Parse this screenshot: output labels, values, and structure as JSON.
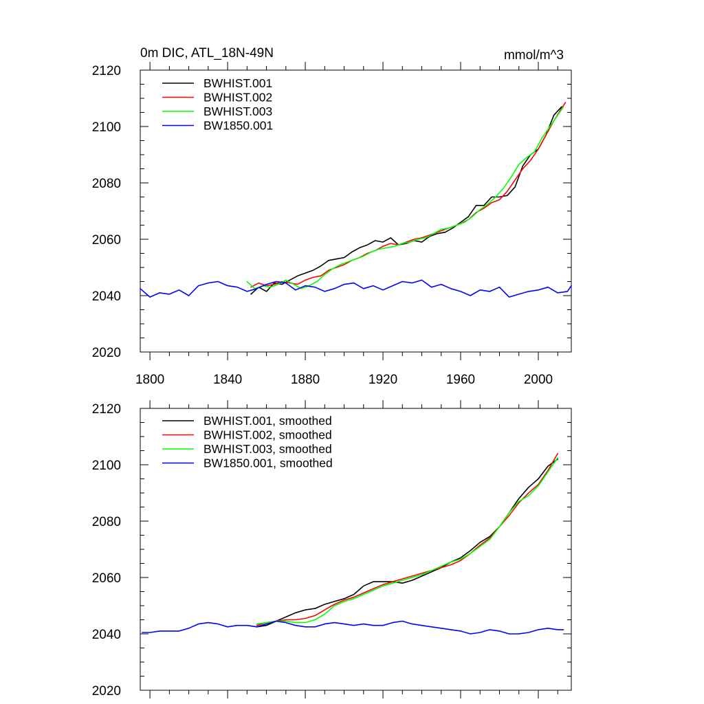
{
  "chart_data": [
    {
      "type": "line",
      "title_left": "0m DIC, ATL_18N-49N",
      "title_right": "mmol/m^3",
      "xlim": [
        1795,
        2017
      ],
      "ylim": [
        2020,
        2120
      ],
      "xticks": [
        1800,
        1840,
        1880,
        1920,
        1960,
        2000
      ],
      "xtick_labels": [
        "1800",
        "1840",
        "1880",
        "1920",
        "1960",
        "2000"
      ],
      "yticks": [
        2020,
        2040,
        2060,
        2080,
        2100,
        2120
      ],
      "ytick_labels": [
        "2020",
        "2040",
        "2060",
        "2080",
        "2100",
        "2120"
      ],
      "legend_position": "top-left",
      "series": [
        {
          "name": "BWHIST.001",
          "color": "#000000",
          "x": [
            1852,
            1856,
            1860,
            1864,
            1868,
            1872,
            1876,
            1880,
            1884,
            1888,
            1892,
            1896,
            1900,
            1904,
            1908,
            1912,
            1916,
            1920,
            1924,
            1928,
            1932,
            1936,
            1940,
            1944,
            1948,
            1952,
            1956,
            1960,
            1964,
            1968,
            1972,
            1976,
            1980,
            1984,
            1988,
            1992,
            1996,
            2000,
            2004,
            2008,
            2012
          ],
          "y": [
            2040.5,
            2043,
            2041.5,
            2044.5,
            2044,
            2045.5,
            2047,
            2048,
            2049,
            2050.5,
            2052.5,
            2053,
            2053.5,
            2055.5,
            2057,
            2058,
            2059.5,
            2059,
            2060.5,
            2058,
            2058.5,
            2059.5,
            2059,
            2061,
            2062,
            2062.5,
            2064,
            2066,
            2068,
            2072,
            2072,
            2075,
            2075,
            2075.5,
            2078.5,
            2086,
            2090,
            2092,
            2097,
            2104,
            2107
          ]
        },
        {
          "name": "BWHIST.002",
          "color": "#ff0000",
          "x": [
            1852,
            1856,
            1860,
            1864,
            1868,
            1872,
            1876,
            1880,
            1884,
            1888,
            1892,
            1896,
            1900,
            1904,
            1908,
            1912,
            1916,
            1920,
            1924,
            1928,
            1932,
            1936,
            1940,
            1944,
            1948,
            1952,
            1956,
            1960,
            1964,
            1968,
            1972,
            1976,
            1980,
            1984,
            1988,
            1992,
            1996,
            2000,
            2004,
            2008,
            2012,
            2014
          ],
          "y": [
            2043,
            2044.5,
            2043.5,
            2044,
            2045,
            2044.5,
            2044,
            2045.5,
            2046.5,
            2047,
            2049,
            2050,
            2051,
            2052.5,
            2053.5,
            2055,
            2056,
            2057.5,
            2058.5,
            2058,
            2059,
            2060,
            2060.5,
            2061.5,
            2062.5,
            2063.5,
            2064.5,
            2065.5,
            2067,
            2069.5,
            2071,
            2073,
            2074,
            2077,
            2081,
            2085,
            2088,
            2092,
            2097,
            2102,
            2106.5,
            2108.5
          ]
        },
        {
          "name": "BWHIST.003",
          "color": "#00ff00",
          "x": [
            1850,
            1854,
            1858,
            1862,
            1866,
            1870,
            1874,
            1878,
            1882,
            1886,
            1890,
            1894,
            1898,
            1902,
            1906,
            1910,
            1914,
            1918,
            1922,
            1926,
            1930,
            1934,
            1938,
            1942,
            1946,
            1950,
            1954,
            1958,
            1962,
            1966,
            1970,
            1974,
            1978,
            1982,
            1986,
            1990,
            1994,
            1998,
            2002,
            2006,
            2010,
            2013
          ],
          "y": [
            2045,
            2042.5,
            2043.5,
            2043,
            2044,
            2045.5,
            2044,
            2042.5,
            2043.5,
            2045,
            2047.5,
            2049.5,
            2051,
            2052,
            2053,
            2054,
            2055.5,
            2056.5,
            2057,
            2057.5,
            2058.5,
            2059,
            2060,
            2060.5,
            2062,
            2063.5,
            2064,
            2065,
            2066,
            2068,
            2070.5,
            2072.5,
            2075,
            2078,
            2082,
            2086.5,
            2089,
            2091,
            2096,
            2100,
            2104,
            2107
          ]
        },
        {
          "name": "BW1850.001",
          "color": "#0000ff",
          "x": [
            1795,
            1800,
            1805,
            1810,
            1815,
            1820,
            1825,
            1830,
            1835,
            1840,
            1845,
            1850,
            1855,
            1860,
            1865,
            1870,
            1875,
            1880,
            1885,
            1890,
            1895,
            1900,
            1905,
            1910,
            1915,
            1920,
            1925,
            1930,
            1935,
            1940,
            1945,
            1950,
            1955,
            1960,
            1965,
            1970,
            1975,
            1980,
            1985,
            1990,
            1995,
            2000,
            2005,
            2010,
            2015,
            2017
          ],
          "y": [
            2042.5,
            2039.5,
            2041,
            2040.5,
            2042,
            2040,
            2043.5,
            2044.5,
            2045,
            2043.5,
            2043,
            2041.5,
            2042.5,
            2044,
            2045,
            2044.5,
            2042,
            2043.5,
            2043,
            2041.5,
            2042.5,
            2044,
            2044.5,
            2042.5,
            2043.5,
            2042,
            2043.5,
            2045,
            2044.5,
            2045.5,
            2043,
            2044,
            2042.5,
            2041.5,
            2040,
            2042,
            2041.5,
            2043,
            2039.5,
            2040.5,
            2041.5,
            2042,
            2043,
            2041,
            2041.5,
            2043.5
          ]
        }
      ]
    },
    {
      "type": "line",
      "xlim": [
        1795,
        2017
      ],
      "ylim": [
        2020,
        2120
      ],
      "xticks": [
        1800,
        1840,
        1880,
        1920,
        1960,
        2000
      ],
      "yticks": [
        2020,
        2040,
        2060,
        2080,
        2100,
        2120
      ],
      "ytick_labels": [
        "2020",
        "2040",
        "2060",
        "2080",
        "2100",
        "2120"
      ],
      "legend_position": "top-left",
      "series": [
        {
          "name": "BWHIST.001, smoothed",
          "color": "#000000",
          "x": [
            1855,
            1860,
            1865,
            1870,
            1875,
            1880,
            1885,
            1890,
            1895,
            1900,
            1905,
            1910,
            1915,
            1920,
            1925,
            1930,
            1935,
            1940,
            1945,
            1950,
            1955,
            1960,
            1965,
            1970,
            1975,
            1980,
            1985,
            1990,
            1995,
            2000,
            2005,
            2010
          ],
          "y": [
            2042.5,
            2043,
            2044.5,
            2046,
            2047.5,
            2048.5,
            2049,
            2050.5,
            2051.5,
            2052.5,
            2054,
            2057,
            2058.5,
            2058.5,
            2058.5,
            2058,
            2059,
            2060.5,
            2062,
            2063.5,
            2065.5,
            2067,
            2069.5,
            2072.5,
            2074.5,
            2078,
            2083,
            2088,
            2092,
            2095,
            2099.5,
            2102
          ]
        },
        {
          "name": "BWHIST.002, smoothed",
          "color": "#ff0000",
          "x": [
            1855,
            1860,
            1865,
            1870,
            1875,
            1880,
            1885,
            1890,
            1895,
            1900,
            1905,
            1910,
            1915,
            1920,
            1925,
            1930,
            1935,
            1940,
            1945,
            1950,
            1955,
            1960,
            1965,
            1970,
            1975,
            1980,
            1985,
            1990,
            1995,
            2000,
            2005,
            2010
          ],
          "y": [
            2043,
            2044,
            2044.5,
            2045,
            2045,
            2045.5,
            2046.5,
            2048.5,
            2050.5,
            2052,
            2053,
            2054.5,
            2056,
            2057.5,
            2058.5,
            2059.5,
            2060.5,
            2061.5,
            2062.5,
            2063.5,
            2064.5,
            2066,
            2068.5,
            2071.5,
            2074,
            2078,
            2082,
            2086.5,
            2090,
            2093,
            2098,
            2104
          ]
        },
        {
          "name": "BWHIST.003, smoothed",
          "color": "#00ff00",
          "x": [
            1855,
            1860,
            1865,
            1870,
            1875,
            1880,
            1885,
            1890,
            1895,
            1900,
            1905,
            1910,
            1915,
            1920,
            1925,
            1930,
            1935,
            1940,
            1945,
            1950,
            1955,
            1960,
            1965,
            1970,
            1975,
            1980,
            1985,
            1990,
            1995,
            2000,
            2005,
            2010
          ],
          "y": [
            2043.5,
            2044,
            2044.5,
            2044.5,
            2044,
            2044,
            2045,
            2047,
            2050,
            2051.5,
            2052.5,
            2054,
            2055.5,
            2057,
            2058,
            2059,
            2060,
            2061,
            2062.5,
            2064,
            2065.5,
            2066.5,
            2068.5,
            2071,
            2073.5,
            2078,
            2083,
            2087,
            2089,
            2092.5,
            2097.5,
            2102.5
          ]
        },
        {
          "name": "BW1850.001, smoothed",
          "color": "#0000ff",
          "x": [
            1796,
            1800,
            1805,
            1810,
            1815,
            1820,
            1825,
            1830,
            1835,
            1840,
            1845,
            1850,
            1855,
            1860,
            1865,
            1870,
            1875,
            1880,
            1885,
            1890,
            1895,
            1900,
            1905,
            1910,
            1915,
            1920,
            1925,
            1930,
            1935,
            1940,
            1945,
            1950,
            1955,
            1960,
            1965,
            1970,
            1975,
            1980,
            1985,
            1990,
            1995,
            2000,
            2005,
            2010,
            2013
          ],
          "y": [
            2040.5,
            2040.5,
            2041,
            2041,
            2041,
            2042,
            2043.5,
            2044,
            2043.5,
            2042.5,
            2043,
            2043,
            2042.5,
            2043.5,
            2044.5,
            2044,
            2043,
            2042.5,
            2042.5,
            2043.5,
            2044,
            2043.5,
            2043,
            2043.5,
            2043,
            2043,
            2044,
            2044.5,
            2043.5,
            2043,
            2042.5,
            2042,
            2041.5,
            2041,
            2040,
            2040.5,
            2041.5,
            2041,
            2040,
            2040,
            2040.5,
            2041.5,
            2042,
            2041.5,
            2041.5
          ]
        }
      ]
    }
  ]
}
